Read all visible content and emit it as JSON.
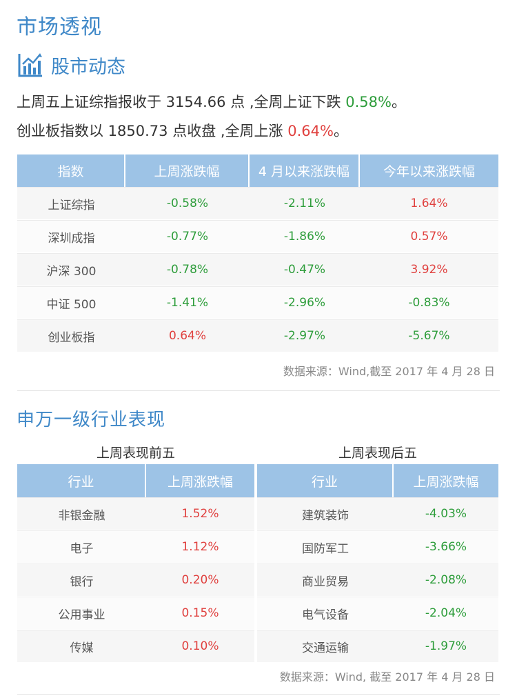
{
  "page_title": "市场透视",
  "section1": {
    "heading": "股市动态",
    "summary1": {
      "text1": "上周五上证综指报收于 3154.66 点 ,全周上证下跌 ",
      "value": "0.58%",
      "text2": "。"
    },
    "summary2": {
      "text1": "创业板指数以 1850.73 点收盘 ,全周上涨 ",
      "value": "0.64%",
      "text2": "。"
    },
    "table": {
      "headers": [
        "指数",
        "上周涨跌幅",
        "4 月以来涨跌幅",
        "今年以来涨跌幅"
      ],
      "rows": [
        {
          "name": "上证综指",
          "values": [
            {
              "v": "-0.58%",
              "c": "green"
            },
            {
              "v": "-2.11%",
              "c": "green"
            },
            {
              "v": "1.64%",
              "c": "red"
            }
          ]
        },
        {
          "name": "深圳成指",
          "values": [
            {
              "v": "-0.77%",
              "c": "green"
            },
            {
              "v": "-1.86%",
              "c": "green"
            },
            {
              "v": "0.57%",
              "c": "red"
            }
          ]
        },
        {
          "name": "沪深 300",
          "values": [
            {
              "v": "-0.78%",
              "c": "green"
            },
            {
              "v": "-0.47%",
              "c": "green"
            },
            {
              "v": "3.92%",
              "c": "red"
            }
          ]
        },
        {
          "name": "中证 500",
          "values": [
            {
              "v": "-1.41%",
              "c": "green"
            },
            {
              "v": "-2.96%",
              "c": "green"
            },
            {
              "v": "-0.83%",
              "c": "green"
            }
          ]
        },
        {
          "name": "创业板指",
          "values": [
            {
              "v": "0.64%",
              "c": "red"
            },
            {
              "v": "-2.97%",
              "c": "green"
            },
            {
              "v": "-5.67%",
              "c": "green"
            }
          ]
        }
      ]
    },
    "source": "数据来源：Wind,截至 2017 年 4 月 28 日"
  },
  "section2": {
    "heading": "申万一级行业表现",
    "top5": {
      "caption": "上周表现前五",
      "headers": [
        "行业",
        "上周涨跌幅"
      ],
      "rows": [
        {
          "name": "非银金融",
          "value": "1.52%",
          "c": "red"
        },
        {
          "name": "电子",
          "value": "1.12%",
          "c": "red"
        },
        {
          "name": "银行",
          "value": "0.20%",
          "c": "red"
        },
        {
          "name": "公用事业",
          "value": "0.15%",
          "c": "red"
        },
        {
          "name": "传媒",
          "value": "0.10%",
          "c": "red"
        }
      ]
    },
    "bottom5": {
      "caption": "上周表现后五",
      "headers": [
        "行业",
        "上周涨跌幅"
      ],
      "rows": [
        {
          "name": "建筑装饰",
          "value": "-4.03%",
          "c": "green"
        },
        {
          "name": "国防军工",
          "value": "-3.66%",
          "c": "green"
        },
        {
          "name": "商业贸易",
          "value": "-2.08%",
          "c": "green"
        },
        {
          "name": "电气设备",
          "value": "-2.04%",
          "c": "green"
        },
        {
          "name": "交通运输",
          "value": "-1.97%",
          "c": "green"
        }
      ]
    },
    "source": "数据来源：Wind, 截至 2017 年 4 月 28 日"
  },
  "colors": {
    "accent": "#3f88c8",
    "header_bg": "#9dc3e6",
    "up": "#e0413f",
    "down": "#2e9d3b"
  },
  "icons": {
    "heading_icon": "bar-chart-icon"
  }
}
